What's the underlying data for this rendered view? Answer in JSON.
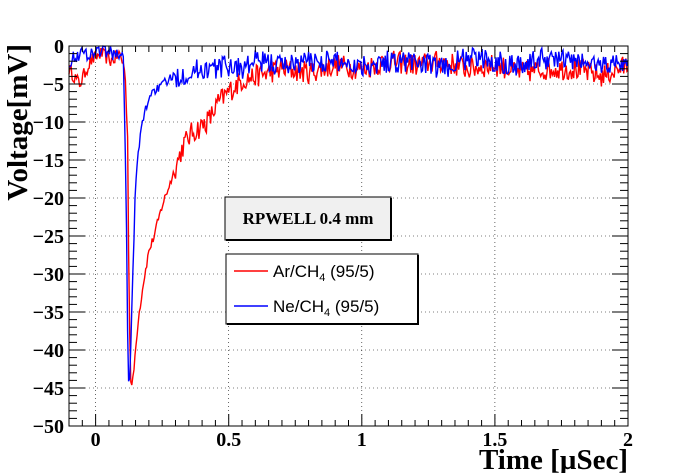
{
  "chart_data": {
    "type": "line",
    "title": "",
    "xlabel": "Time [µSec]",
    "ylabel": "Voltage[mV]",
    "xlim": [
      -0.1,
      2.0
    ],
    "ylim": [
      -50,
      0
    ],
    "grid": true,
    "legend_position": "center",
    "x_ticks": [
      {
        "value": 0,
        "label": "0"
      },
      {
        "value": 0.5,
        "label": "0.5"
      },
      {
        "value": 1,
        "label": "1"
      },
      {
        "value": 1.5,
        "label": "1.5"
      },
      {
        "value": 2,
        "label": "2"
      }
    ],
    "y_ticks": [
      {
        "value": 0,
        "label": "0"
      },
      {
        "value": -5,
        "label": "−5"
      },
      {
        "value": -10,
        "label": "−10"
      },
      {
        "value": -15,
        "label": "−15"
      },
      {
        "value": -20,
        "label": "−20"
      },
      {
        "value": -25,
        "label": "−25"
      },
      {
        "value": -30,
        "label": "−30"
      },
      {
        "value": -35,
        "label": "−35"
      },
      {
        "value": -40,
        "label": "−40"
      },
      {
        "value": -45,
        "label": "−45"
      },
      {
        "value": -50,
        "label": "−50"
      }
    ],
    "annotation": "RPWELL 0.4 mm",
    "series": [
      {
        "name": "Ar/CH4 (95/5)",
        "legend_main": "Ar/CH",
        "legend_sub": "4",
        "legend_tail": " (95/5)",
        "color": "#ff0000",
        "x": [
          -0.1,
          -0.06,
          -0.02,
          0.02,
          0.06,
          0.09,
          0.11,
          0.12,
          0.125,
          0.13,
          0.135,
          0.14,
          0.15,
          0.16,
          0.18,
          0.2,
          0.22,
          0.25,
          0.28,
          0.3,
          0.33,
          0.36,
          0.4,
          0.43,
          0.46,
          0.5,
          0.55,
          0.6,
          0.7,
          0.8,
          0.9,
          1.0,
          1.1,
          1.2,
          1.3,
          1.4,
          1.5,
          1.6,
          1.7,
          1.8,
          1.9,
          2.0
        ],
        "y": [
          -3,
          -5,
          -2,
          -1,
          -2,
          -1,
          -3,
          -12,
          -30,
          -43,
          -45,
          -44,
          -40,
          -36,
          -31,
          -27,
          -25,
          -21,
          -18,
          -16,
          -13,
          -11.5,
          -10.5,
          -9.5,
          -7.5,
          -6,
          -4.5,
          -4,
          -3,
          -3.5,
          -2.5,
          -3,
          -2,
          -2.5,
          -2,
          -3,
          -2.5,
          -3.5,
          -3,
          -3,
          -4,
          -2.5
        ]
      },
      {
        "name": "Ne/CH4 (95/5)",
        "legend_main": "Ne/CH",
        "legend_sub": "4",
        "legend_tail": " (95/5)",
        "color": "#0000ff",
        "x": [
          -0.1,
          -0.06,
          -0.02,
          0.02,
          0.06,
          0.09,
          0.105,
          0.115,
          0.12,
          0.125,
          0.13,
          0.14,
          0.15,
          0.17,
          0.19,
          0.21,
          0.24,
          0.27,
          0.3,
          0.35,
          0.4,
          0.45,
          0.5,
          0.55,
          0.6,
          0.7,
          0.8,
          0.9,
          1.0,
          1.1,
          1.2,
          1.3,
          1.4,
          1.5,
          1.6,
          1.7,
          1.8,
          1.9,
          2.0
        ],
        "y": [
          -2,
          -1,
          -1,
          -0.5,
          -1,
          -1,
          -2,
          -20,
          -38,
          -45,
          -42,
          -30,
          -18,
          -11,
          -8,
          -6,
          -5.5,
          -4.5,
          -4,
          -3.5,
          -3,
          -3,
          -2.5,
          -3,
          -2,
          -2.5,
          -2,
          -2,
          -2.5,
          -2,
          -2,
          -3,
          -1.5,
          -2,
          -2.5,
          -1.5,
          -2,
          -2.5,
          -2
        ]
      }
    ]
  }
}
